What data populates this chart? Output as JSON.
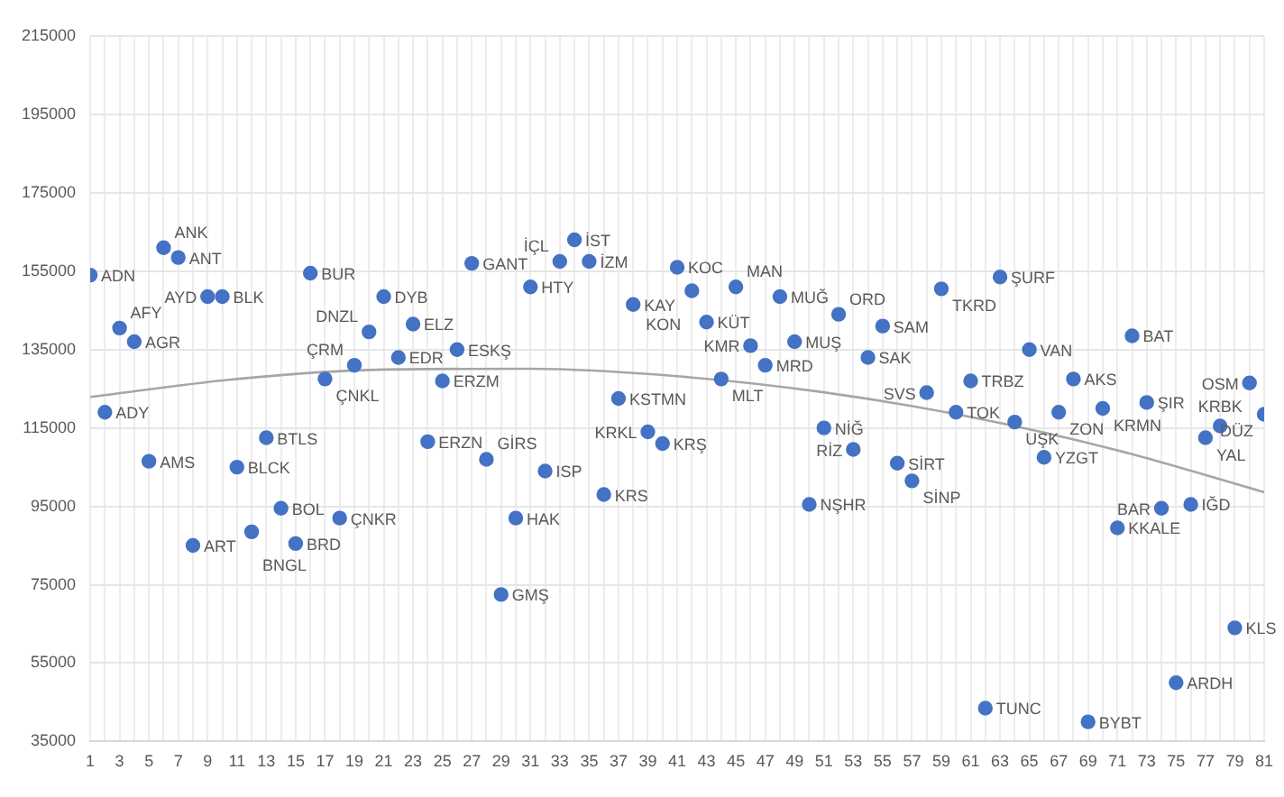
{
  "chart_data": {
    "type": "scatter",
    "marker": "circle",
    "grid": true,
    "legend": false,
    "data_labels": false,
    "xlim": [
      1,
      81
    ],
    "xticks": [
      1,
      {
        "value": 2,
        "label": null
      },
      3,
      {
        "value": 4,
        "label": null
      },
      5,
      {
        "value": 6,
        "label": null
      },
      7,
      {
        "value": 8,
        "label": null
      },
      9,
      {
        "value": 10,
        "label": null
      },
      11,
      {
        "value": 12,
        "label": null
      },
      13,
      {
        "value": 14,
        "label": null
      },
      15,
      {
        "value": 16,
        "label": null
      },
      17,
      {
        "value": 18,
        "label": null
      },
      19,
      {
        "value": 20,
        "label": null
      },
      21,
      {
        "value": 22,
        "label": null
      },
      23,
      {
        "value": 24,
        "label": null
      },
      25,
      {
        "value": 26,
        "label": null
      },
      27,
      {
        "value": 28,
        "label": null
      },
      29,
      {
        "value": 30,
        "label": null
      },
      31,
      {
        "value": 32,
        "label": null
      },
      33,
      {
        "value": 34,
        "label": null
      },
      35,
      {
        "value": 36,
        "label": null
      },
      37,
      {
        "value": 38,
        "label": null
      },
      39,
      {
        "value": 40,
        "label": null
      },
      41,
      {
        "value": 42,
        "label": null
      },
      43,
      {
        "value": 44,
        "label": null
      },
      45,
      {
        "value": 46,
        "label": null
      },
      47,
      {
        "value": 48,
        "label": null
      },
      49,
      {
        "value": 50,
        "label": null
      },
      51,
      {
        "value": 52,
        "label": null
      },
      53,
      {
        "value": 54,
        "label": null
      },
      55,
      {
        "value": 56,
        "label": null
      },
      57,
      {
        "value": 58,
        "label": null
      },
      59,
      {
        "value": 60,
        "label": null
      },
      61,
      {
        "value": 62,
        "label": null
      },
      63,
      {
        "value": 64,
        "label": null
      },
      65,
      {
        "value": 66,
        "label": null
      },
      67,
      {
        "value": 68,
        "label": null
      },
      69,
      {
        "value": 70,
        "label": null
      },
      71,
      {
        "value": 72,
        "label": null
      },
      73,
      {
        "value": 74,
        "label": null
      },
      75,
      {
        "value": 76,
        "label": null
      },
      77,
      {
        "value": 78,
        "label": null
      },
      79,
      {
        "value": 80,
        "label": null
      },
      81
    ],
    "ylim": [
      35000,
      215000
    ],
    "yticks": [
      35000,
      55000,
      75000,
      95000,
      115000,
      135000,
      155000,
      175000,
      195000,
      215000
    ],
    "series": [
      {
        "type": "scatter",
        "color": "#4472c4",
        "x": [
          1,
          2,
          3,
          4,
          5,
          6,
          7,
          8,
          9,
          10,
          11,
          12,
          13,
          14,
          15,
          16,
          17,
          18,
          19,
          20,
          21,
          22,
          23,
          24,
          25,
          26,
          27,
          28,
          29,
          30,
          31,
          32,
          33,
          34,
          35,
          36,
          37,
          38,
          39,
          40,
          41,
          42,
          43,
          44,
          45,
          46,
          47,
          48,
          49,
          50,
          51,
          52,
          53,
          54,
          55,
          56,
          57,
          58,
          59,
          60,
          61,
          62,
          63,
          64,
          65,
          66,
          67,
          68,
          69,
          70,
          71,
          72,
          73,
          74,
          75,
          76,
          77,
          78,
          79,
          80,
          81
        ],
        "values": [
          154000,
          119000,
          140500,
          137000,
          106500,
          161000,
          158500,
          85000,
          148500,
          148500,
          105000,
          88500,
          112500,
          94500,
          85500,
          154500,
          127500,
          92000,
          131000,
          139500,
          148500,
          133000,
          141500,
          111500,
          127000,
          135000,
          157000,
          107000,
          72500,
          92000,
          151000,
          104000,
          157500,
          163000,
          157500,
          98000,
          122500,
          146500,
          114000,
          111000,
          156000,
          150000,
          142000,
          127500,
          151000,
          136000,
          131000,
          148500,
          137000,
          95500,
          115000,
          144000,
          109500,
          133000,
          141000,
          106000,
          101500,
          124000,
          150500,
          119000,
          127000,
          43500,
          153500,
          116500,
          135000,
          107500,
          119000,
          127500,
          40000,
          120000,
          89500,
          138500,
          121500,
          94500,
          50000,
          95500,
          112500,
          115500,
          64000,
          126500,
          118500
        ],
        "value_labels": [
          "ADN",
          "ADY",
          "AFY",
          "AGR",
          "AMS",
          "ANK",
          "ANT",
          "ART",
          "AYD",
          "BLK",
          "BLCK",
          "BNGL",
          "BTLS",
          "BOL",
          "BRD",
          "BUR",
          "ÇNKL",
          "ÇNKR",
          "ÇRM",
          "DNZL",
          "DYB",
          "EDR",
          "ELZ",
          "ERZN",
          "ERZM",
          "ESKŞ",
          "GANT",
          "GİRS",
          "GMŞ",
          "HAK",
          "HTY",
          "ISP",
          "İÇL",
          "İST",
          "İZM",
          "KRS",
          "KSTMN",
          "KAY",
          "KRKL",
          "KRŞ",
          "KOC",
          "KON",
          "KÜT",
          "MLT",
          "MAN",
          "KMR",
          "MRD",
          "MUĞ",
          "MUŞ",
          "NŞHR",
          "NİĞ",
          "ORD",
          "RİZ",
          "SAK",
          "SAM",
          "SİRT",
          "SİNP",
          "SVS",
          "TKRD",
          "TOK",
          "TRBZ",
          "TUNC",
          "ŞURF",
          "UŞK",
          "VAN",
          "YZGT",
          "ZON",
          "AKS",
          "BYBT",
          "KRMN",
          "KKALE",
          "BAT",
          "ŞIR",
          "BAR",
          "ARDH",
          "IĞD",
          "YAL",
          "KRBK",
          "KLS",
          "OSM",
          "DÜZ"
        ]
      },
      {
        "type": "line",
        "color": "#a6a6a6",
        "marker": "none",
        "line_style": "solid",
        "x": [
          1,
          11,
          21,
          31,
          41,
          51,
          61,
          71,
          81
        ],
        "values": [
          122900,
          127500,
          129900,
          130100,
          128200,
          124100,
          117800,
          109300,
          98600
        ]
      }
    ]
  }
}
